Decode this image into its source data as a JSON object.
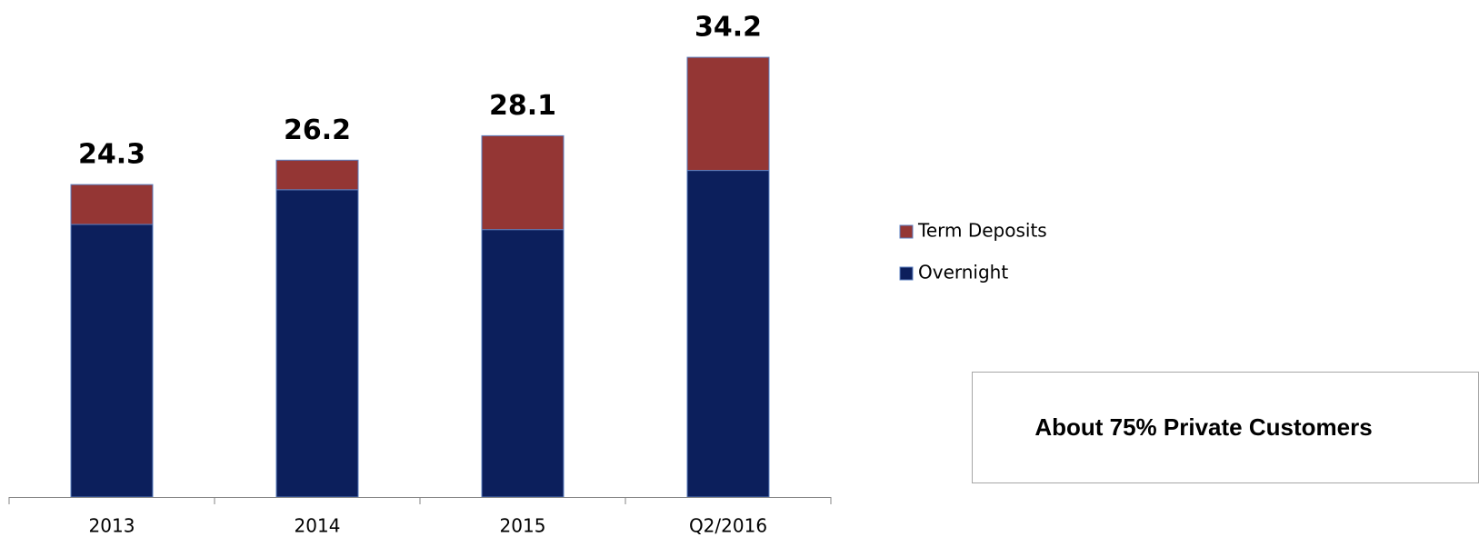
{
  "chart_data": {
    "type": "stacked_bar",
    "categories": [
      "2013",
      "2014",
      "2015",
      "Q2/2016"
    ],
    "series": [
      {
        "name": "Overnight",
        "color": "#0c1f5c",
        "values": [
          21.2,
          23.9,
          20.8,
          25.4
        ]
      },
      {
        "name": "Term Deposits",
        "color": "#943634",
        "values": [
          3.1,
          2.3,
          7.3,
          8.8
        ]
      }
    ],
    "totals": [
      24.3,
      26.2,
      28.1,
      34.2
    ],
    "legend": "right",
    "annotation": "About 75% Private Customers"
  }
}
